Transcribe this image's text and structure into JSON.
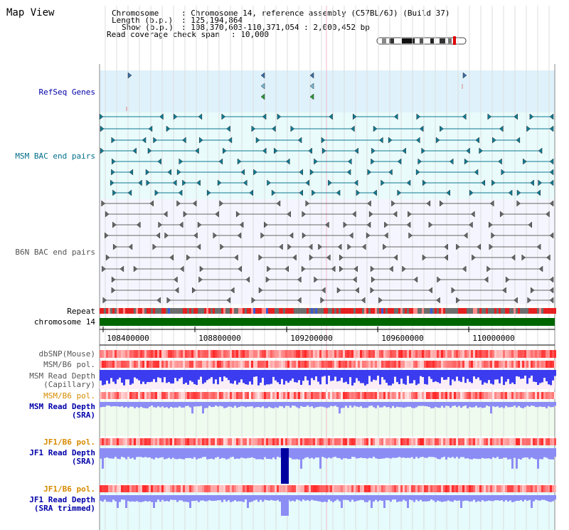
{
  "header": {
    "title": "Map View",
    "chromosome_key": "Chromosome",
    "chromosome_value": ": Chromosome 14, reference assembly (C57BL/6J) (Build 37)",
    "length_key": "Length (b.p.)",
    "length_value": ": 125,194,864",
    "show_key": "Show (b.p.)",
    "show_value": ": 108,370,603-110,371,054 : 2,000,452 bp",
    "span_key": "Read coverage check span",
    "span_value": ": 10,000"
  },
  "tracks": {
    "refseq": "RefSeq Genes",
    "msm_bac": "MSM BAC end pairs",
    "b6n_bac": "B6N BAC end pairs",
    "repeat": "Repeat",
    "chromosome": "chromosome 14",
    "dbsnp": "dbSNP(Mouse)",
    "msm_b6_pol": "MSM/B6 pol.",
    "msm_read_depth_cap_1": "MSM Read Depth",
    "msm_read_depth_cap_2": "(Capillary)",
    "msm_b6_pol_2": "MSM/B6 pol.",
    "msm_read_depth_sra_1": "MSM Read Depth",
    "msm_read_depth_sra_2": "(SRA)",
    "jf1_b6_pol": "JF1/B6 pol.",
    "jf1_read_depth_sra_1": "JF1 Read Depth",
    "jf1_read_depth_sra_2": "(SRA)",
    "jf1_b6_pol_2": "JF1/B6 pol.",
    "jf1_read_depth_trim_1": "JF1 Read Depth",
    "jf1_read_depth_trim_2": "(SRA trimmed)"
  },
  "axis": {
    "ticks": [
      "108400000",
      "108800000",
      "109200000",
      "109600000",
      "110000000"
    ]
  },
  "colors": {
    "refseq_bg": "#dff2fb",
    "msm_bg": "#e9fbfb",
    "b6n_bg": "#f5f5ff",
    "label_blue": "#0000aa",
    "label_teal": "#006e8a",
    "label_orange": "#d68a00",
    "chromosome_bar": "#006600",
    "depth_blue": "#3b3bf0",
    "depth_light": "#8c8cf5"
  }
}
